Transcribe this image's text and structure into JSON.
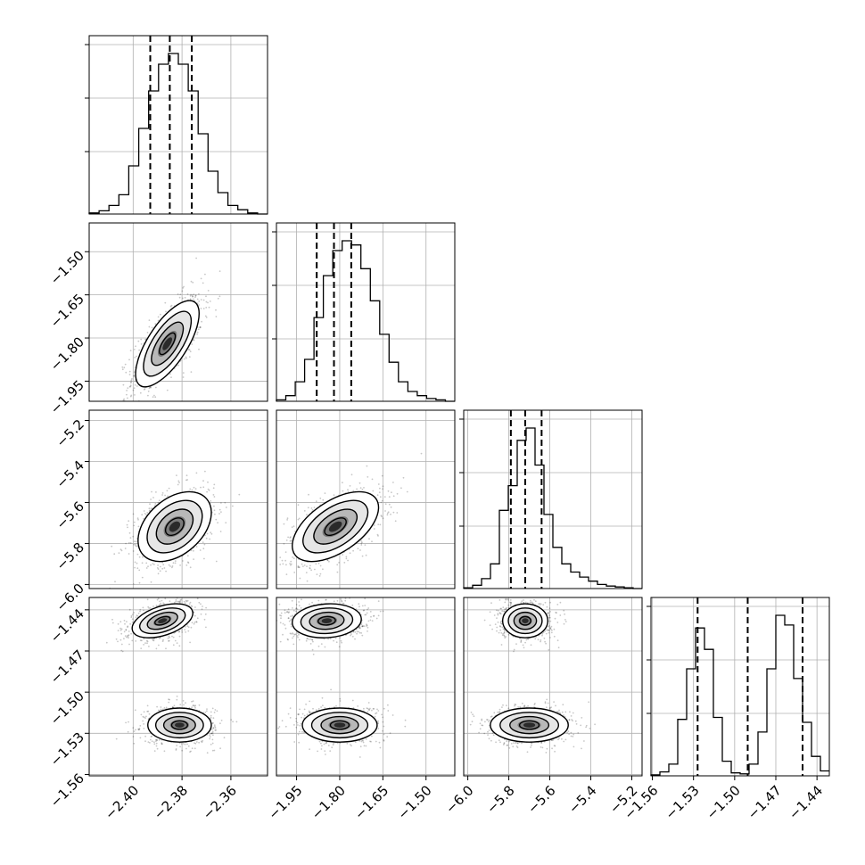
{
  "chart_data": {
    "type": "corner",
    "parameters": [
      {
        "ticks": [
          -2.4,
          -2.38,
          -2.36
        ],
        "tick_labels": [
          "−2.40",
          "−2.38",
          "−2.36"
        ],
        "range": [
          -2.418,
          -2.345
        ],
        "mean": -2.385,
        "q16": -2.393,
        "q50": -2.385,
        "q84": -2.376
      },
      {
        "ticks": [
          -1.95,
          -1.8,
          -1.65,
          -1.5
        ],
        "tick_labels": [
          "−1.95",
          "−1.80",
          "−1.65",
          "−1.50"
        ],
        "range": [
          -2.02,
          -1.4
        ],
        "mean": -1.815,
        "q16": -1.88,
        "q50": -1.82,
        "q84": -1.76
      },
      {
        "ticks": [
          -6.0,
          -5.8,
          -5.6,
          -5.4,
          -5.2
        ],
        "tick_labels": [
          "−6.0",
          "−5.8",
          "−5.6",
          "−5.4",
          "−5.2"
        ],
        "range": [
          -6.02,
          -5.15
        ],
        "mean": -5.71,
        "q16": -5.79,
        "q50": -5.72,
        "q84": -5.64
      },
      {
        "ticks": [
          -1.56,
          -1.53,
          -1.5,
          -1.47,
          -1.44
        ],
        "tick_labels": [
          "−1.56",
          "−1.53",
          "−1.50",
          "−1.47",
          "−1.44"
        ],
        "range": [
          -1.561,
          -1.431
        ],
        "mean": -1.488,
        "q16": -1.527,
        "q50": -1.4905,
        "q84": -1.4505
      }
    ],
    "histograms": [
      {
        "counts": [
          1,
          3,
          8,
          18,
          45,
          80,
          115,
          140,
          150,
          140,
          115,
          75,
          40,
          20,
          8,
          4,
          1,
          0
        ]
      },
      {
        "counts": [
          1,
          4,
          14,
          30,
          60,
          90,
          108,
          115,
          112,
          95,
          72,
          48,
          28,
          14,
          7,
          4,
          2,
          1,
          0
        ]
      },
      {
        "counts": [
          1,
          4,
          12,
          30,
          95,
          125,
          180,
          195,
          150,
          90,
          50,
          30,
          20,
          14,
          9,
          5,
          3,
          2,
          1,
          0
        ]
      },
      {
        "counts": [
          1,
          4,
          12,
          58,
          110,
          152,
          130,
          60,
          15,
          3,
          2,
          12,
          45,
          110,
          165,
          155,
          100,
          55,
          20,
          5
        ]
      }
    ],
    "pairs": [
      {
        "row": 1,
        "col": 0,
        "modes": [
          {
            "cx": -2.386,
            "cy": -1.82,
            "sx": 0.0065,
            "sy": 0.075,
            "rho": 0.7
          }
        ]
      },
      {
        "row": 2,
        "col": 0,
        "modes": [
          {
            "cx": -2.383,
            "cy": -5.718,
            "sx": 0.0075,
            "sy": 0.085,
            "rho": 0.4
          }
        ]
      },
      {
        "row": 2,
        "col": 1,
        "modes": [
          {
            "cx": -1.815,
            "cy": -5.718,
            "sx": 0.075,
            "sy": 0.085,
            "rho": 0.55
          }
        ]
      },
      {
        "row": 3,
        "col": 0,
        "modes": [
          {
            "cx": -2.388,
            "cy": -1.448,
            "sx": 0.0062,
            "sy": 0.0062,
            "rho": 0.45
          },
          {
            "cx": -2.381,
            "cy": -1.524,
            "sx": 0.0065,
            "sy": 0.0062,
            "rho": 0.0
          }
        ]
      },
      {
        "row": 3,
        "col": 1,
        "modes": [
          {
            "cx": -1.845,
            "cy": -1.448,
            "sx": 0.06,
            "sy": 0.0062,
            "rho": 0.1
          },
          {
            "cx": -1.8,
            "cy": -1.524,
            "sx": 0.065,
            "sy": 0.0062,
            "rho": 0.0
          }
        ]
      },
      {
        "row": 3,
        "col": 2,
        "modes": [
          {
            "cx": -5.72,
            "cy": -1.448,
            "sx": 0.055,
            "sy": 0.0062,
            "rho": 0.0
          },
          {
            "cx": -5.7,
            "cy": -1.524,
            "sx": 0.095,
            "sy": 0.0062,
            "rho": 0.0
          }
        ]
      }
    ],
    "contour_levels_sigma": [
      0.5,
      1.0,
      1.5,
      2.0
    ],
    "grid": true,
    "diagonal_y_ticks_labeled": false,
    "title": "",
    "xlabel": "",
    "ylabel": ""
  }
}
